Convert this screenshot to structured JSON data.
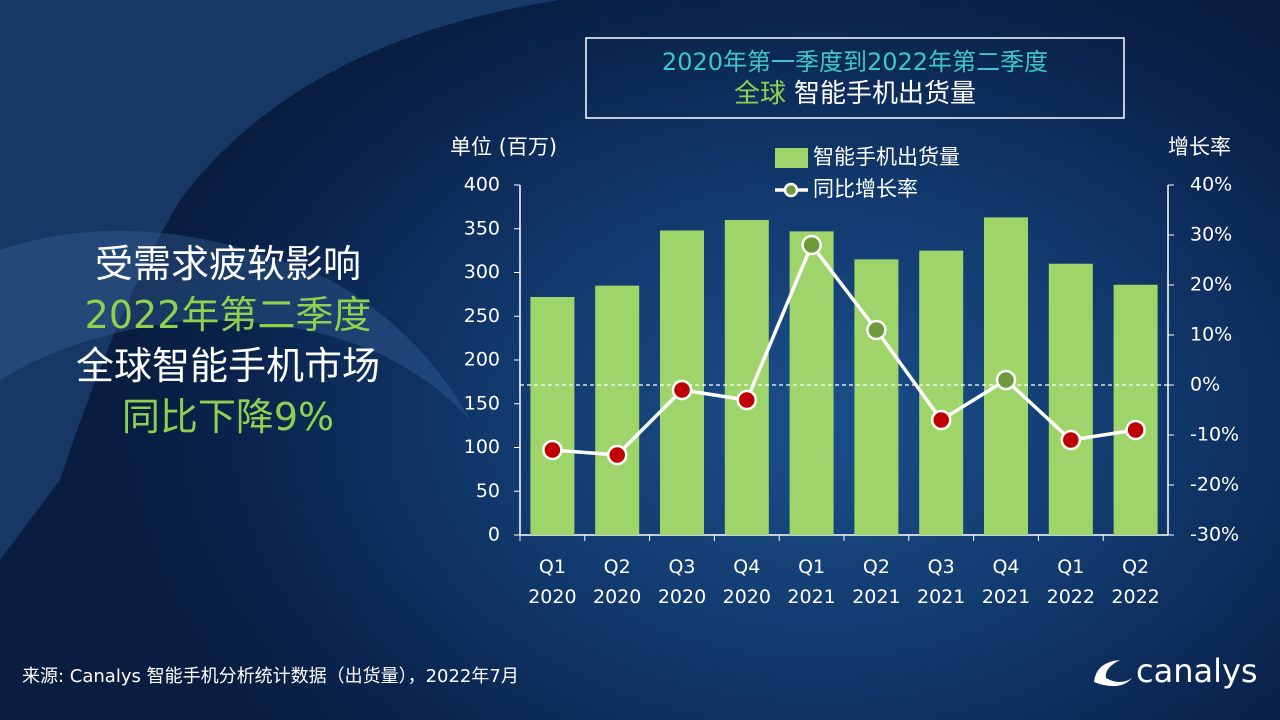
{
  "chart_data": {
    "type": "bar_line",
    "title_line1": "2020年第一季度到2022年第二季度",
    "title_line2_highlight": "全球",
    "title_line2": "智能手机出货量",
    "y_label": "单位 (百万)",
    "y2_label": "增长率",
    "categories": [
      "Q1 2020",
      "Q2 2020",
      "Q3 2020",
      "Q4 2020",
      "Q1 2021",
      "Q2 2021",
      "Q3 2021",
      "Q4 2021",
      "Q1 2022",
      "Q2 2022"
    ],
    "series": [
      {
        "name": "智能手机出货量",
        "type": "bar",
        "color": "#9fd46a",
        "values": [
          272,
          285,
          348,
          360,
          347,
          315,
          325,
          363,
          310,
          286
        ]
      },
      {
        "name": "同比增长率",
        "type": "line",
        "axis": "y2",
        "color": "#ffffff",
        "marker_colors": [
          "#c00000",
          "#c00000",
          "#c00000",
          "#c00000",
          "#6f9a3c",
          "#6f9a3c",
          "#c00000",
          "#6f9a3c",
          "#c00000",
          "#c00000"
        ],
        "values": [
          -13,
          -14,
          -1,
          -3,
          28,
          11,
          -7,
          1,
          -11,
          -9
        ]
      }
    ],
    "ylim": [
      0,
      400
    ],
    "yticks": [
      0,
      50,
      100,
      150,
      200,
      250,
      300,
      350,
      400
    ],
    "y2lim": [
      -30,
      40
    ],
    "y2ticks": [
      {
        "value": -30,
        "label": "-30%"
      },
      {
        "value": -20,
        "label": "-20%"
      },
      {
        "value": -10,
        "label": "-10%"
      },
      {
        "value": 0,
        "label": "0%"
      },
      {
        "value": 10,
        "label": "10%"
      },
      {
        "value": 20,
        "label": "20%"
      },
      {
        "value": 30,
        "label": "30%"
      },
      {
        "value": 40,
        "label": "40%"
      }
    ],
    "zero_line": true
  },
  "headline": [
    "受需求疲软影响",
    "2022年第二季度",
    "全球智能手机市场",
    "同比下降9%"
  ],
  "source": "来源: Canalys 智能手机分析统计数据（出货量），2022年7月",
  "logo": "canalys"
}
